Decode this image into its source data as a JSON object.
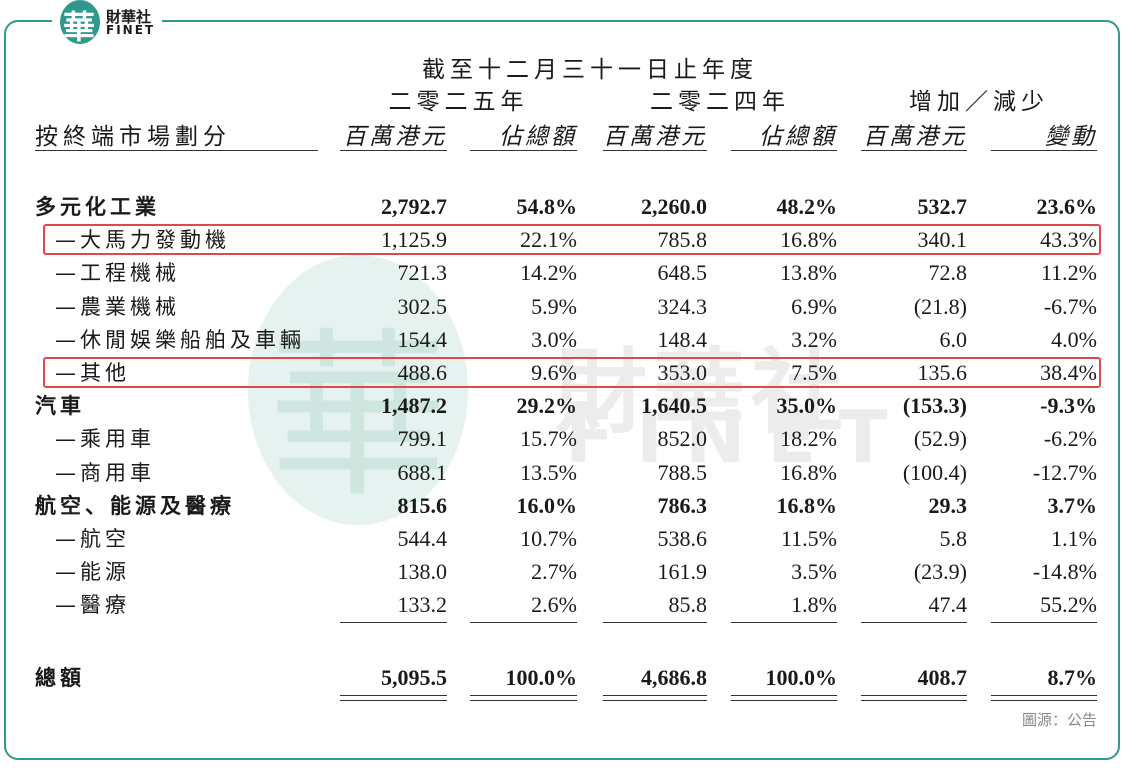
{
  "logo": {
    "mark": "華",
    "name": "財華社",
    "sub": "FINET"
  },
  "watermark": {
    "mark": "華",
    "name": "財華社",
    "sub": "FINET"
  },
  "header": {
    "period": "截至十二月三十一日止年度",
    "groups": [
      "二零二五年",
      "二零二四年",
      "增加／減少"
    ],
    "label": "按終端市場劃分",
    "columns": [
      "百萬港元",
      "佔總額",
      "百萬港元",
      "佔總額",
      "百萬港元",
      "變動"
    ]
  },
  "table": {
    "rows": [
      {
        "cells": [
          "多元化工業",
          "2,792.7",
          "54.8%",
          "2,260.0",
          "48.2%",
          "532.7",
          "23.6%"
        ],
        "bold": true
      },
      {
        "cells": [
          "—大馬力發動機",
          "1,125.9",
          "22.1%",
          "785.8",
          "16.8%",
          "340.1",
          "43.3%"
        ],
        "highlight": true
      },
      {
        "cells": [
          "—工程機械",
          "721.3",
          "14.2%",
          "648.5",
          "13.8%",
          "72.8",
          "11.2%"
        ]
      },
      {
        "cells": [
          "—農業機械",
          "302.5",
          "5.9%",
          "324.3",
          "6.9%",
          "(21.8)",
          "-6.7%"
        ]
      },
      {
        "cells": [
          "—休閒娛樂船舶及車輛",
          "154.4",
          "3.0%",
          "148.4",
          "3.2%",
          "6.0",
          "4.0%"
        ]
      },
      {
        "cells": [
          "—其他",
          "488.6",
          "9.6%",
          "353.0",
          "7.5%",
          "135.6",
          "38.4%"
        ],
        "highlight": true
      },
      {
        "cells": [
          "汽車",
          "1,487.2",
          "29.2%",
          "1,640.5",
          "35.0%",
          "(153.3)",
          "-9.3%"
        ],
        "bold": true
      },
      {
        "cells": [
          "—乘用車",
          "799.1",
          "15.7%",
          "852.0",
          "18.2%",
          "(52.9)",
          "-6.2%"
        ]
      },
      {
        "cells": [
          "—商用車",
          "688.1",
          "13.5%",
          "788.5",
          "16.8%",
          "(100.4)",
          "-12.7%"
        ]
      },
      {
        "cells": [
          "航空、能源及醫療",
          "815.6",
          "16.0%",
          "786.3",
          "16.8%",
          "29.3",
          "3.7%"
        ],
        "bold": true
      },
      {
        "cells": [
          "—航空",
          "544.4",
          "10.7%",
          "538.6",
          "11.5%",
          "5.8",
          "1.1%"
        ]
      },
      {
        "cells": [
          "—能源",
          "138.0",
          "2.7%",
          "161.9",
          "3.5%",
          "(23.9)",
          "-14.8%"
        ]
      },
      {
        "cells": [
          "—醫療",
          "133.2",
          "2.6%",
          "85.8",
          "1.8%",
          "47.4",
          "55.2%"
        ]
      }
    ],
    "total": {
      "cells": [
        "總額",
        "5,095.5",
        "100.0%",
        "4,686.8",
        "100.0%",
        "408.7",
        "8.7%"
      ],
      "bold": true
    }
  },
  "source": "圖源：公告"
}
